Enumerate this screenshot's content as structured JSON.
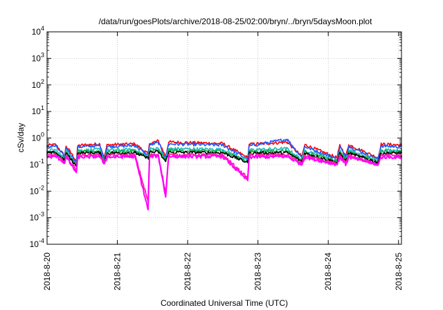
{
  "chart_data": {
    "type": "line",
    "title": "/data/run/goesPlots/archive/2018-08-25/02:00/bryn/../bryn/5daysMoon.plot",
    "xlabel": "Coordinated Universal Time (UTC)",
    "ylabel": "cSv/day",
    "yscale": "log",
    "ylim": [
      0.0001,
      10000
    ],
    "xlim": [
      "2018-08-20 00:00",
      "2018-08-25 01:00"
    ],
    "grid": true,
    "legend": "none",
    "x_ticks": [
      {
        "value": "2018-08-20",
        "label": "2018-8-20"
      },
      {
        "value": "2018-08-21",
        "label": "2018-8-21"
      },
      {
        "value": "2018-08-22",
        "label": "2018-8-22"
      },
      {
        "value": "2018-08-23",
        "label": "2018-8-23"
      },
      {
        "value": "2018-08-24",
        "label": "2018-8-24"
      },
      {
        "value": "2018-08-25",
        "label": "2018-8-25"
      }
    ],
    "y_ticks": [
      {
        "value": 0.0001,
        "base": "10",
        "exp": "-4"
      },
      {
        "value": 0.001,
        "base": "10",
        "exp": "-3"
      },
      {
        "value": 0.01,
        "base": "10",
        "exp": "-2"
      },
      {
        "value": 0.1,
        "base": "10",
        "exp": "-1"
      },
      {
        "value": 1,
        "base": "10",
        "exp": "0"
      },
      {
        "value": 10,
        "base": "10",
        "exp": "1"
      },
      {
        "value": 100,
        "base": "10",
        "exp": "2"
      },
      {
        "value": 1000,
        "base": "10",
        "exp": "3"
      },
      {
        "value": 10000,
        "base": "10",
        "exp": "4"
      }
    ],
    "series": [
      {
        "color": "#ff0000",
        "typical": 0.5,
        "points": [
          [
            "2018-08-20 00:00",
            0.52
          ],
          [
            "2018-08-20 03:00",
            0.56
          ],
          [
            "2018-08-20 06:00",
            0.21
          ],
          [
            "2018-08-20 06:30",
            0.5
          ],
          [
            "2018-08-20 10:00",
            0.14
          ],
          [
            "2018-08-20 10:30",
            0.52
          ],
          [
            "2018-08-20 18:00",
            0.6
          ],
          [
            "2018-08-20 19:30",
            0.18
          ],
          [
            "2018-08-20 20:30",
            0.55
          ],
          [
            "2018-08-21 06:00",
            0.6
          ],
          [
            "2018-08-21 10:30",
            0.25
          ],
          [
            "2018-08-21 11:00",
            0.62
          ],
          [
            "2018-08-21 14:00",
            0.78
          ],
          [
            "2018-08-21 16:30",
            0.2
          ],
          [
            "2018-08-21 17:30",
            0.7
          ],
          [
            "2018-08-22 12:00",
            0.62
          ],
          [
            "2018-08-22 20:30",
            0.18
          ],
          [
            "2018-08-22 21:00",
            0.58
          ],
          [
            "2018-08-23 10:00",
            0.7
          ],
          [
            "2018-08-23 15:00",
            0.2
          ],
          [
            "2018-08-23 16:00",
            0.56
          ],
          [
            "2018-08-24 03:00",
            0.18
          ],
          [
            "2018-08-24 04:00",
            0.55
          ],
          [
            "2018-08-24 06:00",
            0.2
          ],
          [
            "2018-08-24 07:00",
            0.56
          ],
          [
            "2018-08-24 17:00",
            0.18
          ],
          [
            "2018-08-24 18:00",
            0.58
          ],
          [
            "2018-08-25 01:00",
            0.55
          ]
        ]
      },
      {
        "color": "#2255ff",
        "typical": 0.44,
        "points": [
          [
            "2018-08-20 00:00",
            0.46
          ],
          [
            "2018-08-20 03:00",
            0.5
          ],
          [
            "2018-08-20 06:00",
            0.19
          ],
          [
            "2018-08-20 06:30",
            0.44
          ],
          [
            "2018-08-20 10:00",
            0.12
          ],
          [
            "2018-08-20 10:30",
            0.46
          ],
          [
            "2018-08-20 18:00",
            0.52
          ],
          [
            "2018-08-20 19:30",
            0.16
          ],
          [
            "2018-08-20 20:30",
            0.48
          ],
          [
            "2018-08-21 06:00",
            0.52
          ],
          [
            "2018-08-21 10:30",
            0.22
          ],
          [
            "2018-08-21 11:00",
            0.55
          ],
          [
            "2018-08-21 14:00",
            0.66
          ],
          [
            "2018-08-21 16:30",
            0.18
          ],
          [
            "2018-08-21 17:30",
            0.6
          ],
          [
            "2018-08-22 12:00",
            0.54
          ],
          [
            "2018-08-22 20:30",
            0.16
          ],
          [
            "2018-08-22 21:00",
            0.5
          ],
          [
            "2018-08-23 10:00",
            0.9
          ],
          [
            "2018-08-23 15:00",
            0.18
          ],
          [
            "2018-08-23 16:00",
            0.48
          ],
          [
            "2018-08-24 03:00",
            0.16
          ],
          [
            "2018-08-24 04:00",
            0.48
          ],
          [
            "2018-08-24 06:00",
            0.18
          ],
          [
            "2018-08-24 07:00",
            0.49
          ],
          [
            "2018-08-24 17:00",
            0.16
          ],
          [
            "2018-08-24 18:00",
            0.5
          ],
          [
            "2018-08-25 01:00",
            0.47
          ]
        ]
      },
      {
        "color": "#22bbbb",
        "typical": 0.34,
        "points": [
          [
            "2018-08-20 00:00",
            0.34
          ],
          [
            "2018-08-20 03:00",
            0.36
          ],
          [
            "2018-08-20 06:00",
            0.16
          ],
          [
            "2018-08-20 06:30",
            0.33
          ],
          [
            "2018-08-20 10:00",
            0.1
          ],
          [
            "2018-08-20 10:30",
            0.34
          ],
          [
            "2018-08-20 18:00",
            0.37
          ],
          [
            "2018-08-20 19:30",
            0.14
          ],
          [
            "2018-08-20 20:30",
            0.35
          ],
          [
            "2018-08-21 06:00",
            0.37
          ],
          [
            "2018-08-21 10:30",
            0.19
          ],
          [
            "2018-08-21 11:00",
            0.38
          ],
          [
            "2018-08-21 14:00",
            0.42
          ],
          [
            "2018-08-21 16:30",
            0.15
          ],
          [
            "2018-08-21 17:30",
            0.4
          ],
          [
            "2018-08-22 12:00",
            0.37
          ],
          [
            "2018-08-22 20:30",
            0.14
          ],
          [
            "2018-08-22 21:00",
            0.36
          ],
          [
            "2018-08-23 10:00",
            0.4
          ],
          [
            "2018-08-23 15:00",
            0.15
          ],
          [
            "2018-08-23 16:00",
            0.35
          ],
          [
            "2018-08-24 03:00",
            0.14
          ],
          [
            "2018-08-24 04:00",
            0.35
          ],
          [
            "2018-08-24 06:00",
            0.15
          ],
          [
            "2018-08-24 07:00",
            0.35
          ],
          [
            "2018-08-24 17:00",
            0.14
          ],
          [
            "2018-08-24 18:00",
            0.36
          ],
          [
            "2018-08-25 01:00",
            0.34
          ]
        ]
      },
      {
        "color": "#11aa44",
        "typical": 0.3,
        "points": [
          [
            "2018-08-20 00:00",
            0.3
          ],
          [
            "2018-08-20 03:00",
            0.31
          ],
          [
            "2018-08-20 06:00",
            0.15
          ],
          [
            "2018-08-20 06:30",
            0.29
          ],
          [
            "2018-08-20 10:00",
            0.09
          ],
          [
            "2018-08-20 10:30",
            0.3
          ],
          [
            "2018-08-20 18:00",
            0.32
          ],
          [
            "2018-08-20 19:30",
            0.13
          ],
          [
            "2018-08-20 20:30",
            0.3
          ],
          [
            "2018-08-21 06:00",
            0.32
          ],
          [
            "2018-08-21 10:30",
            0.18
          ],
          [
            "2018-08-21 11:00",
            0.33
          ],
          [
            "2018-08-21 14:00",
            0.35
          ],
          [
            "2018-08-21 16:30",
            0.14
          ],
          [
            "2018-08-21 17:30",
            0.34
          ],
          [
            "2018-08-22 12:00",
            0.32
          ],
          [
            "2018-08-22 20:30",
            0.13
          ],
          [
            "2018-08-22 21:00",
            0.31
          ],
          [
            "2018-08-23 10:00",
            0.33
          ],
          [
            "2018-08-23 15:00",
            0.14
          ],
          [
            "2018-08-23 16:00",
            0.3
          ],
          [
            "2018-08-24 03:00",
            0.13
          ],
          [
            "2018-08-24 04:00",
            0.3
          ],
          [
            "2018-08-24 06:00",
            0.14
          ],
          [
            "2018-08-24 07:00",
            0.3
          ],
          [
            "2018-08-24 17:00",
            0.13
          ],
          [
            "2018-08-24 18:00",
            0.31
          ],
          [
            "2018-08-25 01:00",
            0.3
          ]
        ]
      },
      {
        "color": "#000000",
        "typical": 0.27,
        "points": [
          [
            "2018-08-20 00:00",
            0.27
          ],
          [
            "2018-08-20 03:00",
            0.28
          ],
          [
            "2018-08-20 06:00",
            0.14
          ],
          [
            "2018-08-20 06:30",
            0.27
          ],
          [
            "2018-08-20 10:00",
            0.085
          ],
          [
            "2018-08-20 10:30",
            0.27
          ],
          [
            "2018-08-20 18:00",
            0.28
          ],
          [
            "2018-08-20 19:30",
            0.12
          ],
          [
            "2018-08-20 20:30",
            0.27
          ],
          [
            "2018-08-21 06:00",
            0.28
          ],
          [
            "2018-08-21 10:30",
            0.17
          ],
          [
            "2018-08-21 11:00",
            0.29
          ],
          [
            "2018-08-21 14:00",
            0.3
          ],
          [
            "2018-08-21 16:30",
            0.13
          ],
          [
            "2018-08-21 17:30",
            0.29
          ],
          [
            "2018-08-22 12:00",
            0.28
          ],
          [
            "2018-08-22 20:30",
            0.12
          ],
          [
            "2018-08-22 21:00",
            0.27
          ],
          [
            "2018-08-23 10:00",
            0.28
          ],
          [
            "2018-08-23 15:00",
            0.13
          ],
          [
            "2018-08-23 16:00",
            0.27
          ],
          [
            "2018-08-24 03:00",
            0.12
          ],
          [
            "2018-08-24 04:00",
            0.27
          ],
          [
            "2018-08-24 06:00",
            0.13
          ],
          [
            "2018-08-24 07:00",
            0.27
          ],
          [
            "2018-08-24 17:00",
            0.12
          ],
          [
            "2018-08-24 18:00",
            0.27
          ],
          [
            "2018-08-25 01:00",
            0.27
          ]
        ]
      },
      {
        "color": "#ff22aa",
        "typical": 0.22,
        "points": [
          [
            "2018-08-20 00:00",
            0.22
          ],
          [
            "2018-08-20 03:00",
            0.23
          ],
          [
            "2018-08-20 06:00",
            0.12
          ],
          [
            "2018-08-20 06:30",
            0.22
          ],
          [
            "2018-08-20 10:00",
            0.06
          ],
          [
            "2018-08-20 10:30",
            0.22
          ],
          [
            "2018-08-20 18:00",
            0.23
          ],
          [
            "2018-08-20 19:30",
            0.11
          ],
          [
            "2018-08-20 20:30",
            0.22
          ],
          [
            "2018-08-21 06:00",
            0.23
          ],
          [
            "2018-08-21 10:30",
            0.004
          ],
          [
            "2018-08-21 11:00",
            0.23
          ],
          [
            "2018-08-21 14:00",
            0.24
          ],
          [
            "2018-08-21 16:30",
            0.008
          ],
          [
            "2018-08-21 17:30",
            0.23
          ],
          [
            "2018-08-22 12:00",
            0.23
          ],
          [
            "2018-08-22 20:30",
            0.03
          ],
          [
            "2018-08-22 21:00",
            0.22
          ],
          [
            "2018-08-23 10:00",
            0.23
          ],
          [
            "2018-08-23 15:00",
            0.11
          ],
          [
            "2018-08-23 16:00",
            0.22
          ],
          [
            "2018-08-24 03:00",
            0.1
          ],
          [
            "2018-08-24 04:00",
            0.22
          ],
          [
            "2018-08-24 06:00",
            0.11
          ],
          [
            "2018-08-24 07:00",
            0.22
          ],
          [
            "2018-08-24 17:00",
            0.1
          ],
          [
            "2018-08-24 18:00",
            0.22
          ],
          [
            "2018-08-25 01:00",
            0.22
          ]
        ]
      },
      {
        "color": "#ff00ff",
        "typical": 0.19,
        "points": [
          [
            "2018-08-20 00:00",
            0.19
          ],
          [
            "2018-08-20 03:00",
            0.2
          ],
          [
            "2018-08-20 06:00",
            0.12
          ],
          [
            "2018-08-20 06:30",
            0.19
          ],
          [
            "2018-08-20 10:00",
            0.05
          ],
          [
            "2018-08-20 10:30",
            0.19
          ],
          [
            "2018-08-20 18:00",
            0.2
          ],
          [
            "2018-08-20 19:30",
            0.11
          ],
          [
            "2018-08-20 20:30",
            0.19
          ],
          [
            "2018-08-21 06:00",
            0.2
          ],
          [
            "2018-08-21 10:30",
            0.002
          ],
          [
            "2018-08-21 11:00",
            0.2
          ],
          [
            "2018-08-21 14:00",
            0.21
          ],
          [
            "2018-08-21 16:30",
            0.006
          ],
          [
            "2018-08-21 17:30",
            0.2
          ],
          [
            "2018-08-22 12:00",
            0.2
          ],
          [
            "2018-08-22 20:30",
            0.025
          ],
          [
            "2018-08-22 21:00",
            0.19
          ],
          [
            "2018-08-23 10:00",
            0.2
          ],
          [
            "2018-08-23 15:00",
            0.1
          ],
          [
            "2018-08-23 16:00",
            0.19
          ],
          [
            "2018-08-24 03:00",
            0.1
          ],
          [
            "2018-08-24 04:00",
            0.19
          ],
          [
            "2018-08-24 06:00",
            0.1
          ],
          [
            "2018-08-24 07:00",
            0.19
          ],
          [
            "2018-08-24 17:00",
            0.1
          ],
          [
            "2018-08-24 18:00",
            0.19
          ],
          [
            "2018-08-25 01:00",
            0.19
          ]
        ]
      }
    ]
  }
}
